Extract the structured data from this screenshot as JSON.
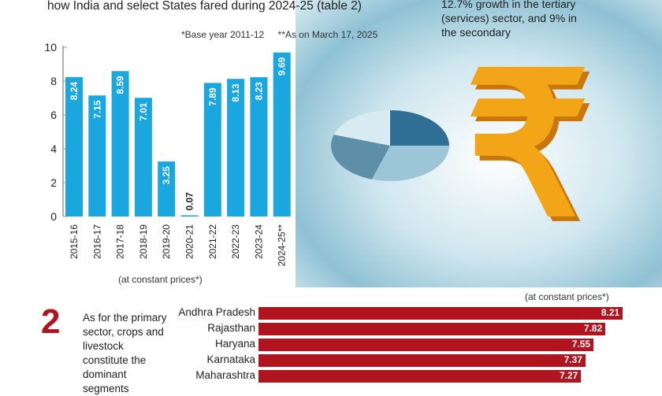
{
  "header": {
    "title_line": "how India and select States fared during 2024-25 (table 2)",
    "note_base": "*Base year 2011-12",
    "note_asof": "**As on March 17, 2025"
  },
  "side_text": [
    "12.7% growth in the tertiary",
    "(services) sector, and 9% in",
    "the secondary"
  ],
  "art": {
    "rupee_symbol": "₹"
  },
  "chart_data": [
    {
      "type": "bar",
      "categories": [
        "2015-16",
        "2016-17",
        "2017-18",
        "2018-19",
        "2019-20",
        "2020-21",
        "2021-22",
        "2022-23",
        "2023-24",
        "2024-25**"
      ],
      "values": [
        8.24,
        7.15,
        8.59,
        7.01,
        3.25,
        0.07,
        7.89,
        8.13,
        8.23,
        9.69
      ],
      "value_labels": [
        "8.24",
        "7.15",
        "8.59",
        "7.01",
        "3.25",
        "0.07",
        "7.89",
        "8.13",
        "8.23",
        "9.69"
      ],
      "ylim": [
        0,
        10
      ],
      "yticks": [
        "0",
        "2",
        "4",
        "6",
        "8",
        "10"
      ],
      "caption": "(at constant prices*)",
      "color": "#1aa7e0",
      "grid": false
    },
    {
      "type": "bar",
      "orientation": "horizontal",
      "categories": [
        "Andhra Pradesh",
        "Rajasthan",
        "Haryana",
        "Karnataka",
        "Maharashtra"
      ],
      "values": [
        8.21,
        7.82,
        7.55,
        7.37,
        7.27
      ],
      "value_labels": [
        "8.21",
        "7.82",
        "7.55",
        "7.37",
        "7.27"
      ],
      "caption": "(at constant prices*)",
      "color": "#b0141e"
    }
  ],
  "section2": {
    "number": "2",
    "text": "As for the primary sector, crops and livestock constitute the dominant segments"
  }
}
